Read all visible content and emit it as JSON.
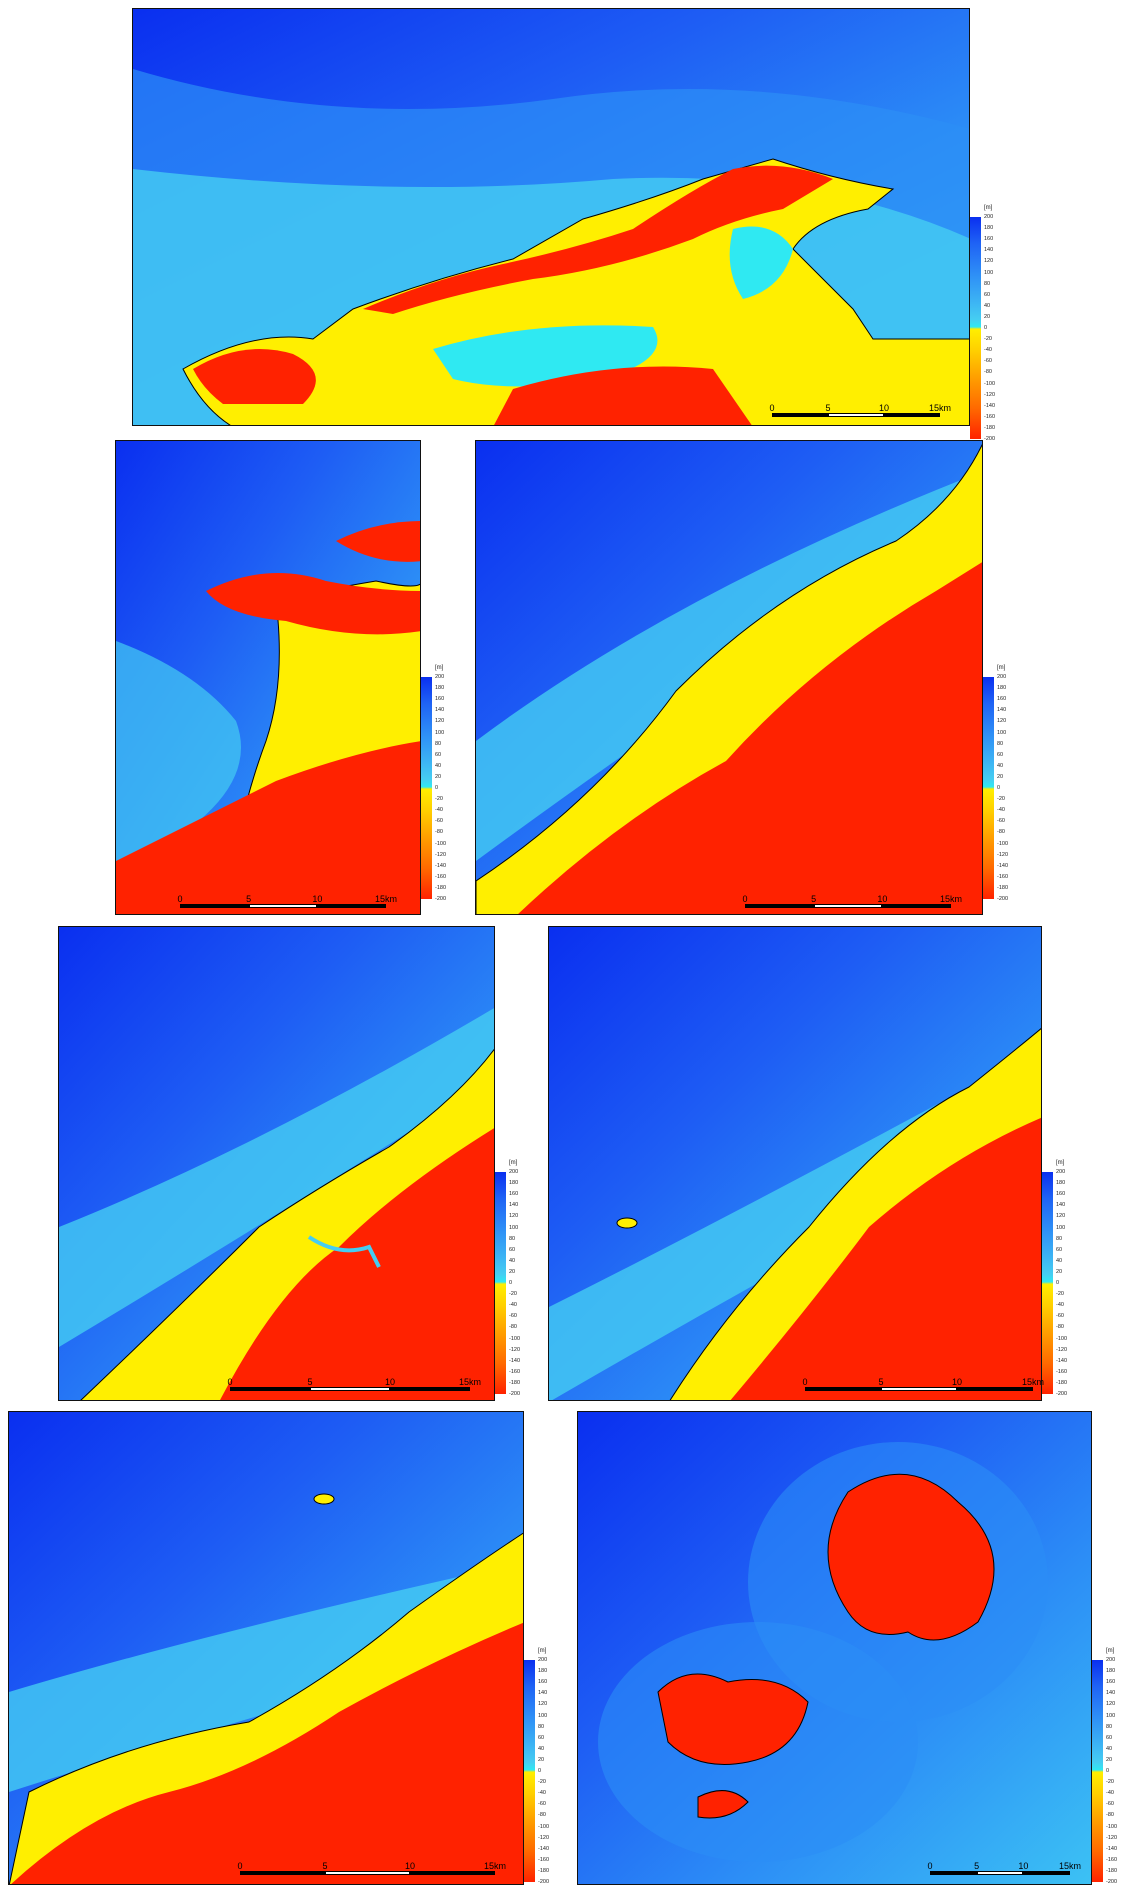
{
  "legend": {
    "unit": "[m]",
    "ticks": [
      "200",
      "180",
      "160",
      "140",
      "120",
      "100",
      "80",
      "60",
      "40",
      "20",
      "0",
      "-20",
      "-40",
      "-60",
      "-80",
      "-100",
      "-120",
      "-140",
      "-160",
      "-180",
      "-200"
    ]
  },
  "scalebar": {
    "labels": [
      "0",
      "5",
      "10",
      "15km"
    ]
  },
  "colors": {
    "deep_sea": "#0a2ff0",
    "sea": "#2e8ff6",
    "shallow": "#2fe9f2",
    "lowland": "#ffef00",
    "mountain": "#ff2200"
  },
  "panels": [
    {
      "id": "panel-1"
    },
    {
      "id": "panel-2"
    },
    {
      "id": "panel-3"
    },
    {
      "id": "panel-4"
    },
    {
      "id": "panel-5"
    },
    {
      "id": "panel-6"
    },
    {
      "id": "panel-7"
    }
  ]
}
